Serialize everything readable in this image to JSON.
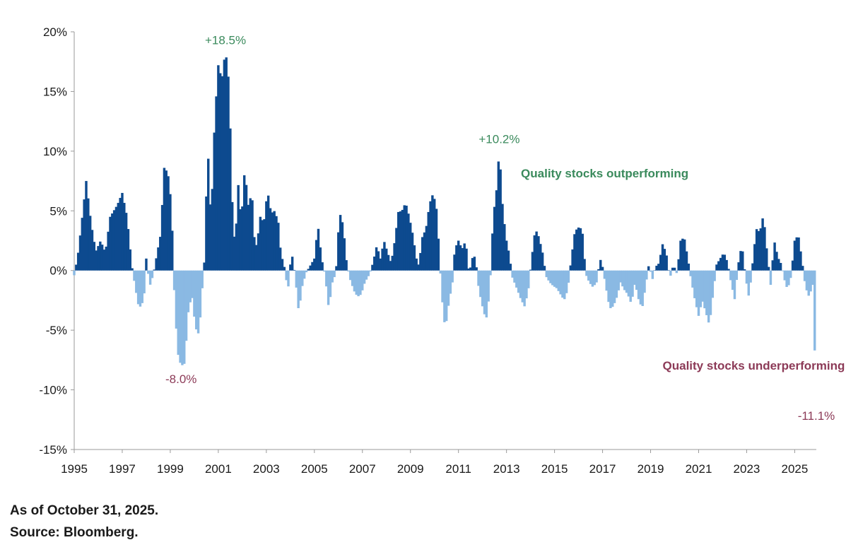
{
  "chart_data": {
    "type": "bar",
    "title": "",
    "xlabel": "",
    "ylabel": "",
    "ylim": [
      -15,
      20
    ],
    "xlim": [
      1995,
      2025.9
    ],
    "y_ticks": [
      20,
      15,
      10,
      5,
      0,
      -5,
      -10,
      -15
    ],
    "y_tick_labels": [
      "20%",
      "15%",
      "10%",
      "5%",
      "0%",
      "-5%",
      "-10%",
      "-15%"
    ],
    "x_ticks": [
      1995,
      1997,
      1999,
      2001,
      2003,
      2005,
      2007,
      2009,
      2011,
      2013,
      2015,
      2017,
      2019,
      2021,
      2023,
      2025
    ],
    "x_tick_labels": [
      "1995",
      "1997",
      "1999",
      "2001",
      "2003",
      "2005",
      "2007",
      "2009",
      "2011",
      "2013",
      "2015",
      "2017",
      "2019",
      "2021",
      "2023",
      "2025"
    ],
    "grid": false,
    "colors": {
      "positive": "#0d4a8f",
      "negative": "#8ab9e3"
    },
    "series": [
      {
        "name": "",
        "anchors": [
          [
            1995.0,
            -0.4
          ],
          [
            1995.15,
            1.2
          ],
          [
            1995.3,
            3.8
          ],
          [
            1995.5,
            7.5
          ],
          [
            1995.7,
            4.0
          ],
          [
            1995.9,
            1.6
          ],
          [
            1996.1,
            2.5
          ],
          [
            1996.3,
            1.5
          ],
          [
            1996.5,
            4.5
          ],
          [
            1996.8,
            5.5
          ],
          [
            1997.0,
            6.5
          ],
          [
            1997.2,
            4.5
          ],
          [
            1997.4,
            0.4
          ],
          [
            1997.55,
            -1.5
          ],
          [
            1997.7,
            -3.2
          ],
          [
            1997.9,
            -2.5
          ],
          [
            1998.0,
            1.0
          ],
          [
            1998.15,
            -1.3
          ],
          [
            1998.3,
            -0.3
          ],
          [
            1998.45,
            1.4
          ],
          [
            1998.6,
            3.0
          ],
          [
            1998.75,
            8.6
          ],
          [
            1998.9,
            8.2
          ],
          [
            1999.05,
            5.5
          ],
          [
            1999.15,
            -1.0
          ],
          [
            1999.3,
            -6.8
          ],
          [
            1999.45,
            -8.0
          ],
          [
            1999.6,
            -7.8
          ],
          [
            1999.75,
            -3.5
          ],
          [
            1999.9,
            -2.0
          ],
          [
            2000.05,
            -4.8
          ],
          [
            2000.2,
            -5.4
          ],
          [
            2000.35,
            -1.0
          ],
          [
            2000.45,
            1.5
          ],
          [
            2000.55,
            10.9
          ],
          [
            2000.7,
            4.0
          ],
          [
            2000.85,
            12.5
          ],
          [
            2001.0,
            17.2
          ],
          [
            2001.15,
            16.0
          ],
          [
            2001.3,
            18.5
          ],
          [
            2001.45,
            15.6
          ],
          [
            2001.6,
            4.5
          ],
          [
            2001.7,
            2.0
          ],
          [
            2001.85,
            7.8
          ],
          [
            2001.95,
            3.8
          ],
          [
            2002.1,
            8.5
          ],
          [
            2002.25,
            5.5
          ],
          [
            2002.4,
            6.5
          ],
          [
            2002.5,
            2.8
          ],
          [
            2002.6,
            2.0
          ],
          [
            2002.75,
            4.5
          ],
          [
            2002.9,
            4.0
          ],
          [
            2003.05,
            6.7
          ],
          [
            2003.2,
            4.8
          ],
          [
            2003.35,
            5.0
          ],
          [
            2003.5,
            4.0
          ],
          [
            2003.6,
            1.5
          ],
          [
            2003.75,
            0.3
          ],
          [
            2003.9,
            -1.7
          ],
          [
            2004.05,
            1.6
          ],
          [
            2004.2,
            -0.4
          ],
          [
            2004.35,
            -3.5
          ],
          [
            2004.5,
            -1.3
          ],
          [
            2004.65,
            -0.2
          ],
          [
            2004.8,
            0.3
          ],
          [
            2005.0,
            1.0
          ],
          [
            2005.15,
            3.8
          ],
          [
            2005.3,
            1.0
          ],
          [
            2005.45,
            -0.4
          ],
          [
            2005.6,
            -3.2
          ],
          [
            2005.75,
            -1.0
          ],
          [
            2005.9,
            -0.2
          ],
          [
            2006.05,
            4.9
          ],
          [
            2006.2,
            3.8
          ],
          [
            2006.35,
            0.5
          ],
          [
            2006.5,
            -0.8
          ],
          [
            2006.65,
            -1.7
          ],
          [
            2006.8,
            -2.2
          ],
          [
            2006.95,
            -2.0
          ],
          [
            2007.1,
            -1.0
          ],
          [
            2007.3,
            -0.3
          ],
          [
            2007.45,
            0.7
          ],
          [
            2007.6,
            2.1
          ],
          [
            2007.75,
            1.0
          ],
          [
            2007.9,
            2.5
          ],
          [
            2008.05,
            1.5
          ],
          [
            2008.2,
            0.6
          ],
          [
            2008.35,
            2.5
          ],
          [
            2008.5,
            4.9
          ],
          [
            2008.65,
            5.0
          ],
          [
            2008.8,
            5.7
          ],
          [
            2008.95,
            4.5
          ],
          [
            2009.1,
            3.0
          ],
          [
            2009.25,
            1.0
          ],
          [
            2009.35,
            0.4
          ],
          [
            2009.5,
            2.8
          ],
          [
            2009.65,
            3.5
          ],
          [
            2009.8,
            5.6
          ],
          [
            2009.95,
            6.5
          ],
          [
            2010.1,
            5.0
          ],
          [
            2010.2,
            1.5
          ],
          [
            2010.3,
            -2.0
          ],
          [
            2010.45,
            -5.0
          ],
          [
            2010.6,
            -2.7
          ],
          [
            2010.75,
            -1.0
          ],
          [
            2010.85,
            1.8
          ],
          [
            2011.0,
            2.5
          ],
          [
            2011.15,
            1.8
          ],
          [
            2011.3,
            2.5
          ],
          [
            2011.45,
            -0.5
          ],
          [
            2011.55,
            1.0
          ],
          [
            2011.7,
            1.2
          ],
          [
            2011.85,
            -1.6
          ],
          [
            2012.0,
            -3.0
          ],
          [
            2012.15,
            -4.2
          ],
          [
            2012.3,
            -1.8
          ],
          [
            2012.45,
            4.5
          ],
          [
            2012.6,
            7.0
          ],
          [
            2012.7,
            10.2
          ],
          [
            2012.85,
            5.0
          ],
          [
            2013.0,
            2.5
          ],
          [
            2013.1,
            1.5
          ],
          [
            2013.25,
            -0.6
          ],
          [
            2013.45,
            -1.6
          ],
          [
            2013.6,
            -2.4
          ],
          [
            2013.75,
            -3.0
          ],
          [
            2013.9,
            -1.8
          ],
          [
            2014.05,
            1.0
          ],
          [
            2014.2,
            3.5
          ],
          [
            2014.35,
            2.8
          ],
          [
            2014.5,
            1.5
          ],
          [
            2014.65,
            -0.5
          ],
          [
            2014.8,
            -1.0
          ],
          [
            2014.95,
            -1.3
          ],
          [
            2015.1,
            -1.5
          ],
          [
            2015.25,
            -2.0
          ],
          [
            2015.4,
            -2.5
          ],
          [
            2015.55,
            -1.6
          ],
          [
            2015.7,
            1.0
          ],
          [
            2015.85,
            3.3
          ],
          [
            2016.0,
            3.6
          ],
          [
            2016.15,
            3.5
          ],
          [
            2016.3,
            -0.3
          ],
          [
            2016.45,
            -1.0
          ],
          [
            2016.6,
            -1.4
          ],
          [
            2016.75,
            -1.0
          ],
          [
            2016.9,
            1.0
          ],
          [
            2017.0,
            0.3
          ],
          [
            2017.15,
            -1.5
          ],
          [
            2017.3,
            -3.2
          ],
          [
            2017.45,
            -3.0
          ],
          [
            2017.6,
            -2.2
          ],
          [
            2017.75,
            -1.0
          ],
          [
            2017.9,
            -1.6
          ],
          [
            2018.05,
            -2.0
          ],
          [
            2018.2,
            -2.8
          ],
          [
            2018.35,
            -1.0
          ],
          [
            2018.5,
            -2.4
          ],
          [
            2018.65,
            -3.2
          ],
          [
            2018.8,
            -1.2
          ],
          [
            2018.95,
            0.8
          ],
          [
            2019.05,
            -1.0
          ],
          [
            2019.2,
            0.3
          ],
          [
            2019.35,
            0.6
          ],
          [
            2019.5,
            2.2
          ],
          [
            2019.65,
            1.5
          ],
          [
            2019.8,
            -0.7
          ],
          [
            2019.95,
            0.5
          ],
          [
            2020.1,
            -0.3
          ],
          [
            2020.25,
            2.5
          ],
          [
            2020.4,
            2.8
          ],
          [
            2020.55,
            1.0
          ],
          [
            2020.7,
            -0.9
          ],
          [
            2020.85,
            -2.5
          ],
          [
            2021.0,
            -3.8
          ],
          [
            2021.15,
            -2.5
          ],
          [
            2021.3,
            -3.5
          ],
          [
            2021.45,
            -4.6
          ],
          [
            2021.6,
            -2.0
          ],
          [
            2021.75,
            0.5
          ],
          [
            2021.9,
            1.0
          ],
          [
            2022.05,
            1.5
          ],
          [
            2022.2,
            0.7
          ],
          [
            2022.35,
            -1.0
          ],
          [
            2022.5,
            -2.4
          ],
          [
            2022.65,
            0.5
          ],
          [
            2022.8,
            2.2
          ],
          [
            2022.95,
            -0.5
          ],
          [
            2023.1,
            -2.3
          ],
          [
            2023.25,
            0.6
          ],
          [
            2023.4,
            3.5
          ],
          [
            2023.55,
            3.2
          ],
          [
            2023.7,
            4.7
          ],
          [
            2023.85,
            1.5
          ],
          [
            2024.0,
            -1.2
          ],
          [
            2024.15,
            2.5
          ],
          [
            2024.3,
            1.1
          ],
          [
            2024.45,
            0.5
          ],
          [
            2024.55,
            -0.6
          ],
          [
            2024.7,
            -1.6
          ],
          [
            2024.85,
            -0.5
          ],
          [
            2025.0,
            2.5
          ],
          [
            2025.15,
            3.0
          ],
          [
            2025.3,
            0.9
          ],
          [
            2025.45,
            -1.4
          ],
          [
            2025.6,
            -2.2
          ],
          [
            2025.75,
            -1.2
          ],
          [
            2025.9,
            -11.1
          ]
        ]
      }
    ],
    "annotations": [
      {
        "text": "+18.5%",
        "x": 2001.3,
        "y": 18.5,
        "color": "#3a8a5c"
      },
      {
        "text": "-8.0%",
        "x": 1999.45,
        "y": -8.0,
        "color": "#8c3a57"
      },
      {
        "text": "+10.2%",
        "x": 2012.7,
        "y": 10.2,
        "color": "#3a8a5c"
      },
      {
        "text": "-11.1%",
        "x": 2025.9,
        "y": -11.1,
        "color": "#8c3a57"
      },
      {
        "text": "Quality stocks outperforming",
        "x": 2013.6,
        "y": 7.8,
        "color": "#3a8a5c",
        "bold": true
      },
      {
        "text": "Quality stocks underperforming",
        "x": 2019.5,
        "y": -8.3,
        "color": "#8c3a57",
        "bold": true
      }
    ]
  },
  "footnotes": {
    "as_of": "As of October 31, 2025.",
    "source": "Source: Bloomberg."
  }
}
